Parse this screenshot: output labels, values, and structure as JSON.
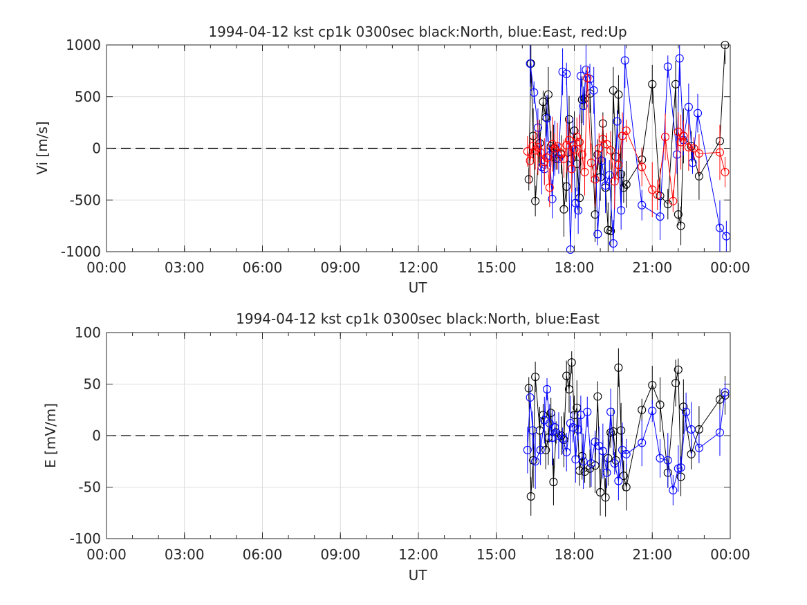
{
  "chart_data": [
    {
      "type": "line",
      "title": "1994-04-12 kst cp1k 0300sec black:North, blue:East, red:Up",
      "xlabel": "UT",
      "ylabel": "Vi [m/s]",
      "xlim": [
        0,
        24
      ],
      "ylim": [
        -1000,
        1000
      ],
      "xticks": [
        "00:00",
        "03:00",
        "06:00",
        "09:00",
        "12:00",
        "15:00",
        "18:00",
        "21:00",
        "00:00"
      ],
      "yticks": [
        "-1000",
        "-500",
        "0",
        "500",
        "1000"
      ],
      "grid": true,
      "reference_line": 0,
      "series": [
        {
          "color": "#000000",
          "marker": "circle",
          "x": [
            16.25,
            16.33,
            16.42,
            16.5,
            16.67,
            16.8,
            16.9,
            17.0,
            17.1,
            17.2,
            17.3,
            17.5,
            17.6,
            17.7,
            17.8,
            17.9,
            18.0,
            18.1,
            18.2,
            18.3,
            18.4,
            18.6,
            18.8,
            18.9,
            19.0,
            19.1,
            19.2,
            19.3,
            19.4,
            19.5,
            19.6,
            19.7,
            19.8,
            19.9,
            20.0,
            20.6,
            21.0,
            21.3,
            21.6,
            21.9,
            22.0,
            22.1,
            22.2,
            22.5,
            22.8,
            23.6,
            23.8
          ],
          "y": [
            -300,
            820,
            120,
            -510,
            50,
            450,
            300,
            520,
            20,
            0,
            -100,
            -60,
            -590,
            -370,
            280,
            -100,
            170,
            -150,
            -480,
            470,
            480,
            530,
            -640,
            -60,
            -280,
            240,
            -380,
            -790,
            -800,
            560,
            -80,
            520,
            -250,
            -380,
            -350,
            -110,
            620,
            -460,
            -540,
            620,
            -640,
            -750,
            120,
            20,
            -270,
            70,
            1000
          ]
        },
        {
          "color": "#0000ff",
          "marker": "circle",
          "x": [
            16.3,
            16.45,
            16.6,
            16.75,
            16.85,
            16.95,
            17.05,
            17.15,
            17.25,
            17.4,
            17.55,
            17.7,
            17.85,
            17.95,
            18.05,
            18.15,
            18.25,
            18.35,
            18.45,
            18.6,
            18.75,
            18.9,
            19.05,
            19.2,
            19.35,
            19.5,
            19.65,
            19.8,
            19.95,
            20.6,
            21.3,
            21.6,
            21.95,
            22.05,
            22.2,
            22.4,
            22.55,
            22.75,
            23.6,
            23.85
          ],
          "y": [
            820,
            540,
            200,
            -180,
            -200,
            290,
            -70,
            -490,
            0,
            -100,
            740,
            720,
            -980,
            30,
            -530,
            -600,
            700,
            410,
            760,
            670,
            560,
            -830,
            -120,
            -360,
            -260,
            -920,
            260,
            -600,
            850,
            -550,
            -660,
            790,
            -60,
            870,
            80,
            400,
            -140,
            340,
            -770,
            -850
          ]
        },
        {
          "color": "#ff0000",
          "marker": "circle",
          "x": [
            16.2,
            16.3,
            16.4,
            16.5,
            16.6,
            16.7,
            16.85,
            16.95,
            17.05,
            17.15,
            17.25,
            17.35,
            17.5,
            17.6,
            17.7,
            17.8,
            17.9,
            18.0,
            18.1,
            18.2,
            18.3,
            18.4,
            18.5,
            18.65,
            18.8,
            18.95,
            19.1,
            19.25,
            19.4,
            19.55,
            19.7,
            19.85,
            20.0,
            20.6,
            21.0,
            21.2,
            21.5,
            21.8,
            22.0,
            22.1,
            22.2,
            22.4,
            22.6,
            22.8,
            23.6,
            23.8
          ],
          "y": [
            -30,
            -120,
            20,
            -20,
            10,
            -40,
            -130,
            -90,
            -380,
            40,
            0,
            20,
            -50,
            -100,
            30,
            80,
            -200,
            -10,
            110,
            60,
            -60,
            -230,
            680,
            -140,
            -300,
            0,
            90,
            40,
            -20,
            -320,
            -160,
            120,
            170,
            -180,
            -400,
            -450,
            110,
            -510,
            160,
            60,
            120,
            10,
            0,
            -50,
            -40,
            -230
          ]
        }
      ]
    },
    {
      "type": "line",
      "title": "1994-04-12 kst cp1k 0300sec black:North, blue:East",
      "xlabel": "UT",
      "ylabel": "E [mV/m]",
      "xlim": [
        0,
        24
      ],
      "ylim": [
        -100,
        100
      ],
      "xticks": [
        "00:00",
        "03:00",
        "06:00",
        "09:00",
        "12:00",
        "15:00",
        "18:00",
        "21:00",
        "00:00"
      ],
      "yticks": [
        "-100",
        "-50",
        "0",
        "50",
        "100"
      ],
      "grid": true,
      "reference_line": 0,
      "series": [
        {
          "color": "#000000",
          "marker": "circle",
          "x": [
            16.25,
            16.33,
            16.42,
            16.5,
            16.67,
            16.8,
            16.9,
            17.0,
            17.1,
            17.2,
            17.3,
            17.5,
            17.6,
            17.7,
            17.8,
            17.9,
            18.0,
            18.1,
            18.2,
            18.3,
            18.4,
            18.6,
            18.8,
            18.9,
            19.0,
            19.1,
            19.2,
            19.3,
            19.4,
            19.5,
            19.6,
            19.7,
            19.8,
            19.9,
            20.0,
            20.6,
            21.0,
            21.3,
            21.6,
            21.9,
            22.0,
            22.1,
            22.2,
            22.5,
            22.8,
            23.6,
            23.8
          ],
          "y": [
            46,
            -59,
            -24,
            57,
            5,
            20,
            -14,
            -2,
            22,
            -45,
            3,
            0,
            -4,
            58,
            45,
            71,
            20,
            27,
            -34,
            -20,
            -35,
            -32,
            -29,
            38,
            -55,
            -15,
            -60,
            -22,
            3,
            4,
            -24,
            66,
            5,
            -39,
            -50,
            25,
            49,
            30,
            -36,
            51,
            64,
            -40,
            28,
            -18,
            6,
            35,
            39
          ]
        },
        {
          "color": "#0000ff",
          "marker": "circle",
          "x": [
            16.2,
            16.3,
            16.4,
            16.5,
            16.7,
            16.85,
            16.95,
            17.05,
            17.15,
            17.25,
            17.4,
            17.55,
            17.7,
            17.85,
            17.95,
            18.05,
            18.15,
            18.25,
            18.35,
            18.5,
            18.65,
            18.8,
            18.95,
            19.1,
            19.25,
            19.4,
            19.55,
            19.7,
            19.85,
            20.0,
            20.6,
            21.0,
            21.3,
            21.6,
            21.8,
            22.0,
            22.1,
            22.3,
            22.5,
            22.8,
            23.6,
            23.8
          ],
          "y": [
            -14,
            37,
            5,
            -25,
            -14,
            15,
            45,
            12,
            -2,
            8,
            0,
            -3,
            -16,
            12,
            8,
            -23,
            6,
            20,
            -25,
            23,
            -27,
            -6,
            -10,
            -15,
            -36,
            23,
            -27,
            -44,
            -14,
            -18,
            -7,
            24,
            -22,
            -24,
            -53,
            -32,
            -31,
            23,
            6,
            -12,
            3,
            42
          ]
        }
      ]
    }
  ]
}
